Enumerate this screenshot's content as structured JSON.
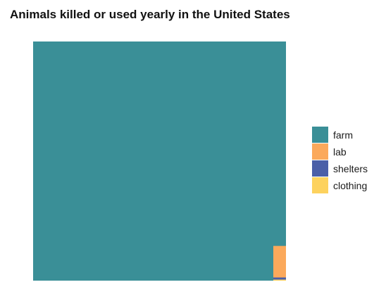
{
  "chart_data": {
    "type": "treemap",
    "title": "Animals killed or used yearly in the United States",
    "categories": [
      "farm",
      "lab",
      "shelters",
      "clothing"
    ],
    "values": [
      9000,
      60,
      4,
      2
    ],
    "colors": [
      "#3a8f97",
      "#fba95b",
      "#4a5fa8",
      "#fdd25e"
    ],
    "legend": {
      "position": "right",
      "entries": [
        "farm",
        "lab",
        "shelters",
        "clothing"
      ]
    }
  }
}
